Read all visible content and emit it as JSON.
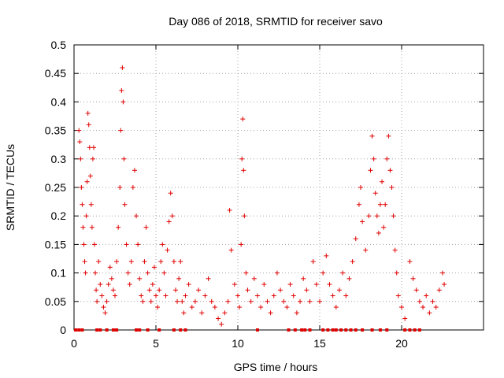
{
  "chart_data": {
    "type": "scatter",
    "title": "Day 086 of 2018, SRMTID for receiver savo",
    "xlabel": "GPS time / hours",
    "ylabel": "SRMTID / TECUs",
    "xlim": [
      0,
      25
    ],
    "ylim": [
      0,
      0.5
    ],
    "x_ticks": [
      0,
      5,
      10,
      15,
      20
    ],
    "x_tick_labels": [
      "0",
      "5",
      "10",
      "15",
      "20"
    ],
    "y_ticks": [
      0,
      0.05,
      0.1,
      0.15,
      0.2,
      0.25,
      0.3,
      0.35,
      0.4,
      0.45,
      0.5
    ],
    "y_tick_labels": [
      "0",
      "0.05",
      "0.1",
      "0.15",
      "0.2",
      "0.25",
      "0.3",
      "0.35",
      "0.4",
      "0.45",
      "0.5"
    ],
    "grid": true,
    "marker": "plus",
    "color": "#e00000",
    "series": [
      {
        "name": "SRMTID",
        "points": [
          [
            0.3,
            0.35
          ],
          [
            0.35,
            0.33
          ],
          [
            0.4,
            0.3
          ],
          [
            0.45,
            0.25
          ],
          [
            0.5,
            0.22
          ],
          [
            0.55,
            0.18
          ],
          [
            0.6,
            0.15
          ],
          [
            0.65,
            0.12
          ],
          [
            0.7,
            0.1
          ],
          [
            0.75,
            0.2
          ],
          [
            0.8,
            0.26
          ],
          [
            0.85,
            0.38
          ],
          [
            0.9,
            0.36
          ],
          [
            0.95,
            0.32
          ],
          [
            1.0,
            0.27
          ],
          [
            1.05,
            0.22
          ],
          [
            1.1,
            0.18
          ],
          [
            1.15,
            0.3
          ],
          [
            1.2,
            0.32
          ],
          [
            1.25,
            0.15
          ],
          [
            1.3,
            0.1
          ],
          [
            1.35,
            0.07
          ],
          [
            1.4,
            0.05
          ],
          [
            1.5,
            0.12
          ],
          [
            1.6,
            0.08
          ],
          [
            1.7,
            0.06
          ],
          [
            1.8,
            0.04
          ],
          [
            1.9,
            0.03
          ],
          [
            2.0,
            0.05
          ],
          [
            2.1,
            0.08
          ],
          [
            2.2,
            0.11
          ],
          [
            2.3,
            0.09
          ],
          [
            2.4,
            0.07
          ],
          [
            2.5,
            0.06
          ],
          [
            2.6,
            0.12
          ],
          [
            2.7,
            0.18
          ],
          [
            2.8,
            0.25
          ],
          [
            2.85,
            0.35
          ],
          [
            2.9,
            0.42
          ],
          [
            2.95,
            0.46
          ],
          [
            3.0,
            0.4
          ],
          [
            3.05,
            0.3
          ],
          [
            3.1,
            0.22
          ],
          [
            3.2,
            0.15
          ],
          [
            3.3,
            0.1
          ],
          [
            3.4,
            0.08
          ],
          [
            3.5,
            0.12
          ],
          [
            3.6,
            0.25
          ],
          [
            3.7,
            0.28
          ],
          [
            3.8,
            0.2
          ],
          [
            3.9,
            0.15
          ],
          [
            4.0,
            0.09
          ],
          [
            4.1,
            0.06
          ],
          [
            4.2,
            0.05
          ],
          [
            4.3,
            0.12
          ],
          [
            4.4,
            0.18
          ],
          [
            4.5,
            0.1
          ],
          [
            4.6,
            0.07
          ],
          [
            4.7,
            0.05
          ],
          [
            4.8,
            0.08
          ],
          [
            4.9,
            0.11
          ],
          [
            5.0,
            0.06
          ],
          [
            5.1,
            0.04
          ],
          [
            5.2,
            0.07
          ],
          [
            5.3,
            0.12
          ],
          [
            5.4,
            0.15
          ],
          [
            5.5,
            0.1
          ],
          [
            5.6,
            0.06
          ],
          [
            5.7,
            0.14
          ],
          [
            5.8,
            0.19
          ],
          [
            5.9,
            0.24
          ],
          [
            6.0,
            0.2
          ],
          [
            6.1,
            0.12
          ],
          [
            6.2,
            0.07
          ],
          [
            6.3,
            0.05
          ],
          [
            6.4,
            0.09
          ],
          [
            6.5,
            0.12
          ],
          [
            6.6,
            0.05
          ],
          [
            6.7,
            0.03
          ],
          [
            6.8,
            0.06
          ],
          [
            7.0,
            0.08
          ],
          [
            7.2,
            0.04
          ],
          [
            7.4,
            0.05
          ],
          [
            7.6,
            0.07
          ],
          [
            7.8,
            0.03
          ],
          [
            8.0,
            0.06
          ],
          [
            8.2,
            0.09
          ],
          [
            8.4,
            0.05
          ],
          [
            8.6,
            0.04
          ],
          [
            8.8,
            0.02
          ],
          [
            9.0,
            0.01
          ],
          [
            9.2,
            0.03
          ],
          [
            9.4,
            0.05
          ],
          [
            9.5,
            0.21
          ],
          [
            9.6,
            0.14
          ],
          [
            9.8,
            0.08
          ],
          [
            10.0,
            0.06
          ],
          [
            10.1,
            0.04
          ],
          [
            10.2,
            0.15
          ],
          [
            10.25,
            0.3
          ],
          [
            10.3,
            0.37
          ],
          [
            10.35,
            0.28
          ],
          [
            10.4,
            0.2
          ],
          [
            10.5,
            0.1
          ],
          [
            10.6,
            0.07
          ],
          [
            10.8,
            0.05
          ],
          [
            11.0,
            0.09
          ],
          [
            11.2,
            0.06
          ],
          [
            11.4,
            0.04
          ],
          [
            11.6,
            0.08
          ],
          [
            11.8,
            0.05
          ],
          [
            12.0,
            0.03
          ],
          [
            12.2,
            0.06
          ],
          [
            12.4,
            0.1
          ],
          [
            12.6,
            0.07
          ],
          [
            12.8,
            0.05
          ],
          [
            13.0,
            0.04
          ],
          [
            13.2,
            0.08
          ],
          [
            13.4,
            0.06
          ],
          [
            13.6,
            0.03
          ],
          [
            13.8,
            0.05
          ],
          [
            14.0,
            0.09
          ],
          [
            14.2,
            0.07
          ],
          [
            14.4,
            0.05
          ],
          [
            14.6,
            0.12
          ],
          [
            14.8,
            0.08
          ],
          [
            15.0,
            0.05
          ],
          [
            15.2,
            0.1
          ],
          [
            15.4,
            0.13
          ],
          [
            15.6,
            0.08
          ],
          [
            15.8,
            0.06
          ],
          [
            16.0,
            0.04
          ],
          [
            16.2,
            0.07
          ],
          [
            16.4,
            0.1
          ],
          [
            16.6,
            0.06
          ],
          [
            16.8,
            0.09
          ],
          [
            17.0,
            0.12
          ],
          [
            17.2,
            0.16
          ],
          [
            17.4,
            0.22
          ],
          [
            17.5,
            0.25
          ],
          [
            17.6,
            0.19
          ],
          [
            17.8,
            0.14
          ],
          [
            18.0,
            0.2
          ],
          [
            18.1,
            0.28
          ],
          [
            18.2,
            0.34
          ],
          [
            18.3,
            0.3
          ],
          [
            18.4,
            0.24
          ],
          [
            18.5,
            0.2
          ],
          [
            18.6,
            0.17
          ],
          [
            18.7,
            0.22
          ],
          [
            18.8,
            0.26
          ],
          [
            18.9,
            0.18
          ],
          [
            19.0,
            0.22
          ],
          [
            19.1,
            0.3
          ],
          [
            19.2,
            0.34
          ],
          [
            19.3,
            0.28
          ],
          [
            19.4,
            0.25
          ],
          [
            19.5,
            0.2
          ],
          [
            19.6,
            0.14
          ],
          [
            19.7,
            0.1
          ],
          [
            19.8,
            0.06
          ],
          [
            20.0,
            0.04
          ],
          [
            20.2,
            0.02
          ],
          [
            20.5,
            0.12
          ],
          [
            20.7,
            0.09
          ],
          [
            20.9,
            0.07
          ],
          [
            21.1,
            0.05
          ],
          [
            21.3,
            0.04
          ],
          [
            21.5,
            0.06
          ],
          [
            21.7,
            0.03
          ],
          [
            21.9,
            0.05
          ],
          [
            22.1,
            0.04
          ],
          [
            22.3,
            0.07
          ],
          [
            22.5,
            0.1
          ],
          [
            22.6,
            0.08
          ]
        ],
        "zero_points": [
          0.1,
          0.3,
          0.5,
          1.4,
          1.6,
          2.0,
          2.4,
          2.6,
          3.8,
          4.0,
          4.5,
          5.2,
          6.1,
          6.5,
          6.8,
          11.2,
          13.1,
          13.5,
          13.9,
          14.1,
          14.4,
          15.2,
          15.5,
          15.8,
          16.0,
          16.3,
          16.6,
          16.9,
          17.2,
          17.6,
          18.2,
          18.7,
          19.1,
          20.2,
          20.5,
          20.8,
          21.1
        ]
      }
    ]
  }
}
